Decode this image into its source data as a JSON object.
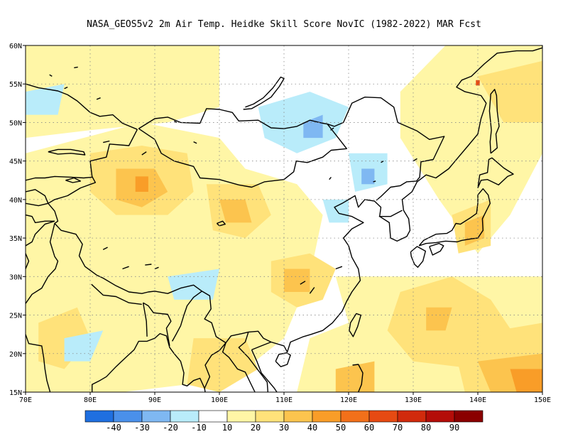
{
  "title": "NASA_GEOS5v2  2m Air Temp. Heidke Skill Score NovIC (1982-2022) MAR Fcst",
  "map": {
    "lon_range": [
      70,
      150
    ],
    "lat_range": [
      15,
      60
    ],
    "lon_ticks": [
      "70E",
      "80E",
      "90E",
      "100E",
      "110E",
      "120E",
      "130E",
      "140E",
      "150E"
    ],
    "lat_ticks": [
      "15N",
      "20N",
      "25N",
      "30N",
      "35N",
      "40N",
      "45N",
      "50N",
      "55N",
      "60N"
    ],
    "grid": "dotted"
  },
  "colorbar": {
    "colors": [
      "#1f6fe0",
      "#4a90ea",
      "#7fb8f2",
      "#b9ecfa",
      "#ffffff",
      "#fff6a6",
      "#ffe27a",
      "#fcc44e",
      "#f99d28",
      "#f2701a",
      "#e64a12",
      "#d12a0c",
      "#b40d08",
      "#8a0000"
    ],
    "labels": [
      "-40",
      "-30",
      "-20",
      "-10",
      "10",
      "20",
      "30",
      "40",
      "50",
      "60",
      "70",
      "80",
      "90"
    ]
  },
  "fields": {
    "color_weak_pos": "#fff6a6",
    "color_mod_pos": "#ffe27a",
    "color_pos": "#fcc44e",
    "color_strong_pos": "#f99d28",
    "color_weak_neg": "#b9ecfa",
    "color_mod_neg": "#7fb8f2",
    "color_hot": "#e64a12"
  }
}
